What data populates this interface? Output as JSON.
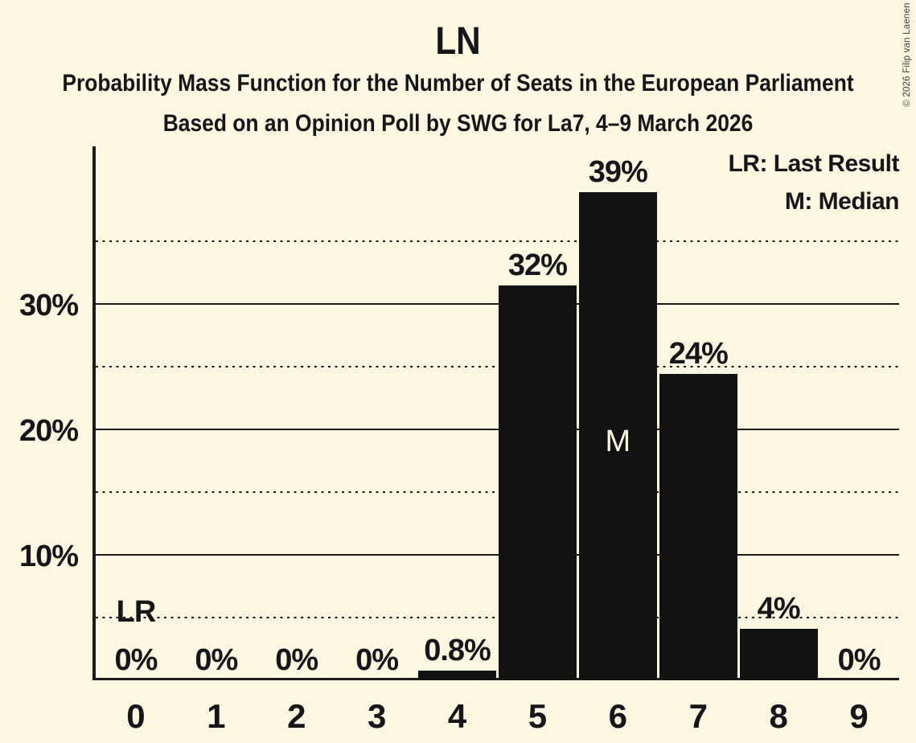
{
  "title": "LN",
  "subtitle": "Probability Mass Function for the Number of Seats in the European Parliament",
  "poll_details": "Based on an Opinion Poll by SWG for La7, 4–9 March 2026",
  "copyright": "© 2026 Filip van Laenen",
  "legend": {
    "last_result": "LR: Last Result",
    "median": "M: Median"
  },
  "colors": {
    "background": "#FBF7E0",
    "bar": "#121212",
    "text": "#15151a",
    "gridline": "#1a1a1a",
    "median_label": "#FAF6DE"
  },
  "chart_data": {
    "type": "bar",
    "title": "LN",
    "subtitle": "Probability Mass Function for the Number of Seats in the European Parliament",
    "source": "Based on an Opinion Poll by SWG for La7, 4–9 March 2026",
    "categories": [
      "0",
      "1",
      "2",
      "3",
      "4",
      "5",
      "6",
      "7",
      "8",
      "9"
    ],
    "values": [
      0,
      0,
      0,
      0,
      0.8,
      31.5,
      38.9,
      24.4,
      4.1,
      0
    ],
    "bar_labels": [
      "0%",
      "0%",
      "0%",
      "0%",
      "0.8%",
      "32%",
      "39%",
      "24%",
      "4%",
      "0%"
    ],
    "xlabel": "",
    "ylabel": "",
    "ylim": [
      0,
      42.5
    ],
    "ytick_values": [
      10,
      20,
      30
    ],
    "ytick_labels": [
      "10%",
      "20%",
      "30%"
    ],
    "solid_gridlines": [
      10,
      20,
      30
    ],
    "dotted_gridlines": [
      5,
      15,
      25,
      35
    ],
    "median_category": "6",
    "median_label": "M",
    "last_result_category": "0",
    "last_result_label": "LR",
    "legend_entries": [
      "LR: Last Result",
      "M: Median"
    ],
    "legend_position": "top-right",
    "grid": "horizontal"
  }
}
